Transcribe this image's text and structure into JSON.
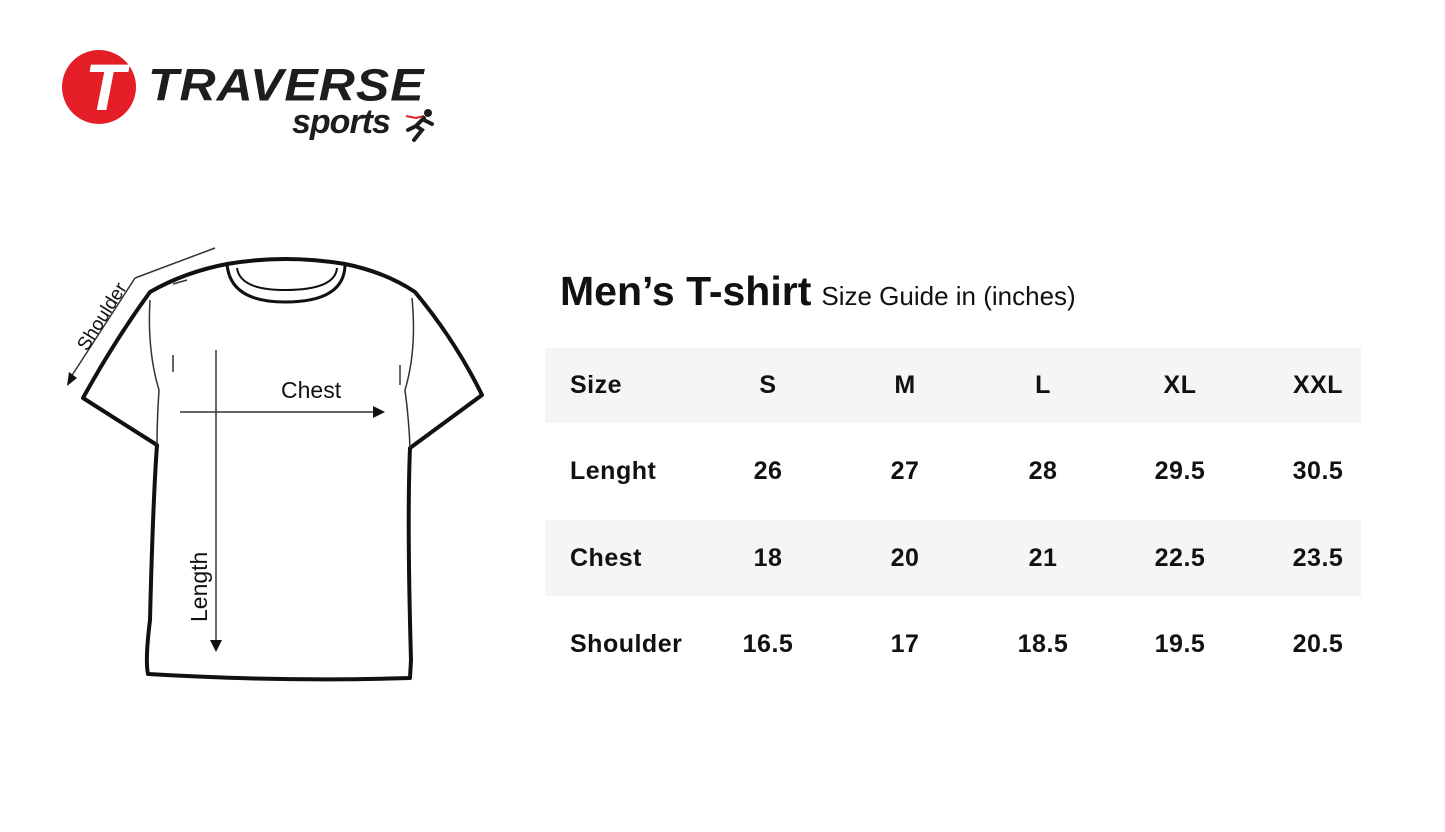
{
  "brand": {
    "name": "TRAVERSE",
    "tagline": "sports",
    "logo_letter": "T",
    "accent": "#e41e26"
  },
  "title": {
    "main": "Men’s T-shirt",
    "sub": "Size Guide in (inches)"
  },
  "diagram": {
    "shoulder": "Shoulder",
    "chest": "Chest",
    "length": "Length"
  },
  "table": {
    "header": {
      "label": "Size",
      "sizes": [
        "S",
        "M",
        "L",
        "XL",
        "XXL"
      ]
    },
    "rows": [
      {
        "label": "Lenght",
        "values": [
          "26",
          "27",
          "28",
          "29.5",
          "30.5"
        ]
      },
      {
        "label": "Chest",
        "values": [
          "18",
          "20",
          "21",
          "22.5",
          "23.5"
        ]
      },
      {
        "label": "Shoulder",
        "values": [
          "16.5",
          "17",
          "18.5",
          "19.5",
          "20.5"
        ]
      }
    ],
    "stripe_color": "#f4f5f7"
  }
}
